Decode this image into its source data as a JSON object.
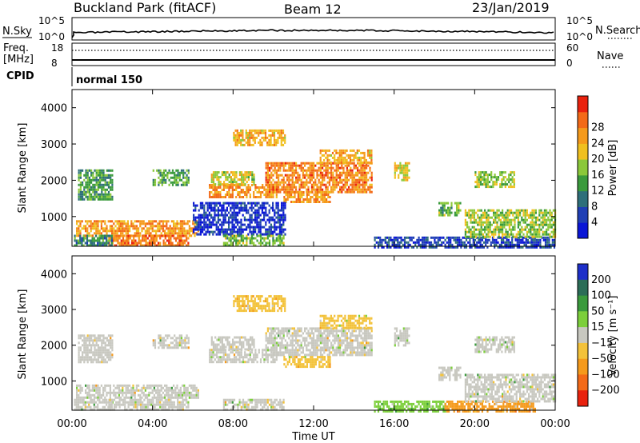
{
  "header": {
    "station": "Buckland Park (fitACF)",
    "beam": "Beam 12",
    "date": "23/Jan/2019"
  },
  "noise_panel": {
    "left_label": "N.Sky",
    "right_label": "N.Search",
    "left_ticks": [
      "10^5",
      "10^0"
    ],
    "right_ticks": [
      "10^5",
      "10^0"
    ]
  },
  "freq_panel": {
    "left_label_line1": "Freq.",
    "left_label_line2": "[MHz]",
    "left_ticks": [
      "18",
      "8"
    ],
    "right_label": "Nave",
    "right_ticks": [
      "60",
      "0"
    ]
  },
  "cpid_panel": {
    "label": "CPID",
    "mode_text": "normal 150"
  },
  "time_axis": {
    "ticks": [
      "00:00",
      "04:00",
      "08:00",
      "12:00",
      "16:00",
      "20:00",
      "00:00"
    ],
    "title": "Time UT"
  },
  "chart_data": [
    {
      "type": "heatmap",
      "name": "power",
      "ylabel": "Slant Range [km]",
      "y_ticks": [
        "1000",
        "2000",
        "3000",
        "4000"
      ],
      "ylim": [
        180,
        4500
      ],
      "xlim_hours": [
        0,
        24
      ],
      "colorbar_title": "Power [dB]",
      "colorbar_ticks": [
        "4",
        "8",
        "12",
        "16",
        "20",
        "24",
        "28"
      ],
      "colorbar_colors": [
        "#0a16d6",
        "#1f3fb5",
        "#2e6f7a",
        "#3a9a3c",
        "#8bc83a",
        "#f0c020",
        "#f59a1c",
        "#f36a18",
        "#e9220e"
      ],
      "regions": [
        {
          "t0": 0.2,
          "t1": 6.3,
          "r0": 500,
          "r1": 900,
          "v": 26
        },
        {
          "t0": 1.8,
          "t1": 5.8,
          "r0": 180,
          "r1": 500,
          "v": 29
        },
        {
          "t0": 0.1,
          "t1": 2.0,
          "r0": 180,
          "r1": 500,
          "v": 12
        },
        {
          "t0": 6.8,
          "t1": 10.2,
          "r0": 1550,
          "r1": 1900,
          "v": 27
        },
        {
          "t0": 9.6,
          "t1": 14.9,
          "r0": 1700,
          "r1": 2500,
          "v": 28
        },
        {
          "t0": 10.5,
          "t1": 12.8,
          "r0": 1400,
          "r1": 1700,
          "v": 27
        },
        {
          "t0": 12.3,
          "t1": 14.9,
          "r0": 2500,
          "r1": 2850,
          "v": 24
        },
        {
          "t0": 6.9,
          "t1": 9.0,
          "r0": 1900,
          "r1": 2250,
          "v": 20
        },
        {
          "t0": 8.0,
          "t1": 10.6,
          "r0": 2950,
          "r1": 3400,
          "v": 24
        },
        {
          "t0": 15.0,
          "t1": 24.0,
          "r0": 180,
          "r1": 450,
          "v": 6
        },
        {
          "t0": 19.5,
          "t1": 24.0,
          "r0": 450,
          "r1": 1200,
          "v": 18
        },
        {
          "t0": 16.0,
          "t1": 16.7,
          "r0": 2000,
          "r1": 2500,
          "v": 22
        },
        {
          "t0": 18.2,
          "t1": 19.3,
          "r0": 1050,
          "r1": 1400,
          "v": 16
        },
        {
          "t0": 20.0,
          "t1": 22.0,
          "r0": 1800,
          "r1": 2250,
          "v": 18
        },
        {
          "t0": 0.3,
          "t1": 2.0,
          "r0": 1500,
          "r1": 2300,
          "v": 14
        },
        {
          "t0": 4.0,
          "t1": 5.8,
          "r0": 1900,
          "r1": 2300,
          "v": 15
        },
        {
          "t0": 6.0,
          "t1": 10.6,
          "r0": 500,
          "r1": 1400,
          "v": 4
        },
        {
          "t0": 7.5,
          "t1": 10.5,
          "r0": 180,
          "r1": 500,
          "v": 16
        }
      ]
    },
    {
      "type": "heatmap",
      "name": "velocity",
      "ylabel": "Slant Range [km]",
      "y_ticks": [
        "1000",
        "2000",
        "3000",
        "4000"
      ],
      "ylim": [
        180,
        4500
      ],
      "xlim_hours": [
        0,
        24
      ],
      "colorbar_title": "Velocity [m s⁻¹]",
      "colorbar_ticks": [
        "200",
        "100",
        "50",
        "15",
        "−15",
        "−50",
        "−100",
        "−200"
      ],
      "colorbar_colors": [
        "#1d2fc9",
        "#2b6d57",
        "#3a9a3c",
        "#7ccf3b",
        "#c8c8c0",
        "#f3c23a",
        "#f59a1c",
        "#f36a18",
        "#e9220e"
      ],
      "regions": [
        {
          "t0": 0.2,
          "t1": 6.3,
          "r0": 500,
          "r1": 900,
          "v": 0
        },
        {
          "t0": 1.8,
          "t1": 5.8,
          "r0": 180,
          "r1": 500,
          "v": 0
        },
        {
          "t0": 0.1,
          "t1": 2.0,
          "r0": 180,
          "r1": 500,
          "v": 0
        },
        {
          "t0": 6.8,
          "t1": 10.2,
          "r0": 1550,
          "r1": 1900,
          "v": 0
        },
        {
          "t0": 9.6,
          "t1": 14.9,
          "r0": 1700,
          "r1": 2500,
          "v": 0
        },
        {
          "t0": 10.5,
          "t1": 12.8,
          "r0": 1400,
          "r1": 1700,
          "v": -20
        },
        {
          "t0": 12.3,
          "t1": 14.9,
          "r0": 2500,
          "r1": 2850,
          "v": -30
        },
        {
          "t0": 6.9,
          "t1": 9.0,
          "r0": 1900,
          "r1": 2250,
          "v": 0
        },
        {
          "t0": 8.0,
          "t1": 10.6,
          "r0": 2950,
          "r1": 3400,
          "v": -40
        },
        {
          "t0": 15.0,
          "t1": 18.5,
          "r0": 180,
          "r1": 450,
          "v": 40
        },
        {
          "t0": 18.5,
          "t1": 23.0,
          "r0": 180,
          "r1": 450,
          "v": -60
        },
        {
          "t0": 19.5,
          "t1": 24.0,
          "r0": 450,
          "r1": 1200,
          "v": 0
        },
        {
          "t0": 16.0,
          "t1": 16.7,
          "r0": 2000,
          "r1": 2500,
          "v": 0
        },
        {
          "t0": 18.2,
          "t1": 19.3,
          "r0": 1050,
          "r1": 1400,
          "v": 0
        },
        {
          "t0": 20.0,
          "t1": 22.0,
          "r0": 1800,
          "r1": 2250,
          "v": 0
        },
        {
          "t0": 0.3,
          "t1": 2.0,
          "r0": 1500,
          "r1": 2300,
          "v": 0
        },
        {
          "t0": 4.0,
          "t1": 5.8,
          "r0": 1900,
          "r1": 2300,
          "v": 0
        },
        {
          "t0": 7.5,
          "t1": 10.5,
          "r0": 180,
          "r1": 500,
          "v": 0
        }
      ]
    }
  ]
}
